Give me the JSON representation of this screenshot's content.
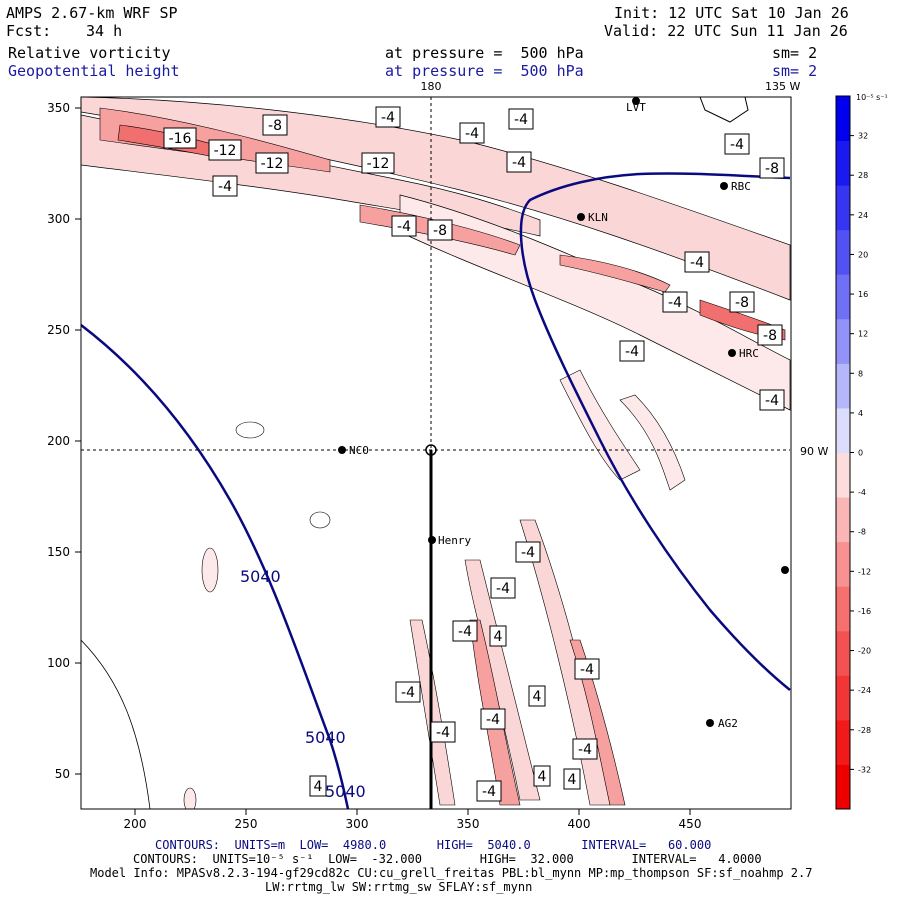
{
  "header": {
    "model_title": "AMPS 2.67-km WRF SP",
    "forecast_label": "Fcst:",
    "forecast_hours": "34 h",
    "init": "Init: 12 UTC Sat 10 Jan 26",
    "valid": "Valid: 22 UTC Sun 11 Jan 26",
    "field1": "Relative vorticity",
    "field1_level": "at pressure =  500 hPa",
    "field1_sm": "sm= 2",
    "field2": "Geopotential height",
    "field2_level": "at pressure =  500 hPa",
    "field2_sm": "sm= 2"
  },
  "map": {
    "x_ticks": [
      "200",
      "250",
      "300",
      "350",
      "400",
      "450"
    ],
    "y_ticks": [
      "350",
      "300",
      "250",
      "200",
      "150",
      "100",
      "50"
    ],
    "meridian_180": "180",
    "meridian_135w": "135 W",
    "parallel_90w": "90 W",
    "stations": [
      {
        "name": "LVT"
      },
      {
        "name": "RBC"
      },
      {
        "name": "KLN"
      },
      {
        "name": "HRC"
      },
      {
        "name": "NCO"
      },
      {
        "name": "Henry"
      },
      {
        "name": "AG2"
      }
    ],
    "height_labels": [
      "5040",
      "5040",
      "5040"
    ],
    "vort_labels": [
      "-16",
      "-12",
      "-12",
      "-12",
      "-8",
      "-8",
      "-8",
      "-8",
      "-8",
      "-4",
      "-4",
      "-4",
      "-4",
      "-4",
      "-4",
      "-4",
      "-4",
      "-4",
      "-4",
      "-4",
      "-4",
      "-4",
      "-4",
      "-4",
      "-4",
      "-4",
      "-4",
      "-4",
      "-4",
      "4",
      "4",
      "4",
      "4",
      "4"
    ]
  },
  "colorbar": {
    "units": "10⁻⁵ s⁻¹",
    "ticks": [
      "32",
      "28",
      "24",
      "20",
      "16",
      "12",
      "8",
      "4",
      "0",
      "-4",
      "-8",
      "-12",
      "-16",
      "-20",
      "-24",
      "-28",
      "-32"
    ],
    "colors": [
      "#0000ee",
      "#1a1af0",
      "#3636f2",
      "#5252f4",
      "#7070f6",
      "#9292f8",
      "#b6b6fa",
      "#dcdcfc",
      "#fcdcdc",
      "#fab6b6",
      "#f89292",
      "#f67070",
      "#f45252",
      "#f23636",
      "#f01a1a",
      "#ee0000"
    ]
  },
  "footer": {
    "line1": "CONTOURS:  UNITS=m  LOW=  4980.0       HIGH=  5040.0       INTERVAL=   60.000",
    "line2": "CONTOURS:  UNITS=10⁻⁵ s⁻¹  LOW=  -32.000        HIGH=  32.000        INTERVAL=   4.0000",
    "line3": "Model Info: MPASv8.2.3-194-gf29cd82c CU:cu_grell_freitas PBL:bl_mynn MP:mp_thompson SF:sf_noahmp 2.7",
    "line4": "LW:rrtmg_lw SW:rrtmg_sw SFLAY:sf_mynn"
  }
}
